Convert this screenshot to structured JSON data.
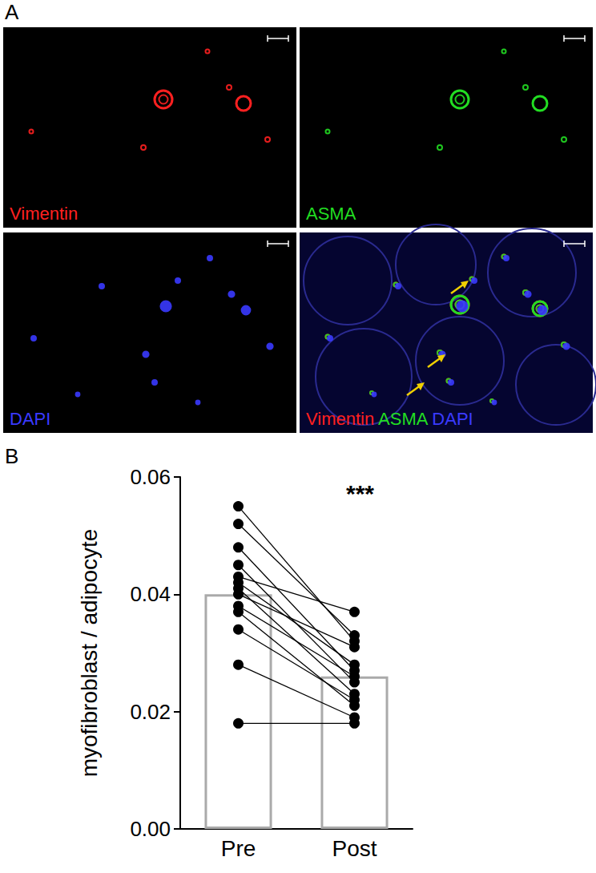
{
  "figure": {
    "panel_a": {
      "label": "A",
      "images": [
        {
          "labels": [
            {
              "text": "Vimentin",
              "color": "#ff2020"
            }
          ]
        },
        {
          "labels": [
            {
              "text": "ASMA",
              "color": "#22dd22"
            }
          ]
        },
        {
          "labels": [
            {
              "text": "DAPI",
              "color": "#3a3aff"
            }
          ]
        },
        {
          "labels": [
            {
              "text": "Vimentin",
              "color": "#ff2020"
            },
            {
              "text": "ASMA",
              "color": "#22dd22"
            },
            {
              "text": "DAPI",
              "color": "#3a3aff"
            }
          ]
        }
      ]
    },
    "panel_b_label": "B"
  },
  "chart_data": {
    "type": "bar",
    "ylabel": "myofibroblast / adipocyte",
    "categories": [
      "Pre",
      "Post"
    ],
    "values": [
      0.04,
      0.026
    ],
    "color": "#aaaaaa",
    "paired_values": [
      [
        0.055,
        0.032
      ],
      [
        0.052,
        0.033
      ],
      [
        0.048,
        0.027
      ],
      [
        0.045,
        0.025
      ],
      [
        0.043,
        0.037
      ],
      [
        0.042,
        0.028
      ],
      [
        0.041,
        0.023
      ],
      [
        0.04,
        0.031
      ],
      [
        0.038,
        0.026
      ],
      [
        0.037,
        0.021
      ],
      [
        0.034,
        0.022
      ],
      [
        0.028,
        0.019
      ],
      [
        0.018,
        0.018
      ]
    ],
    "marker": "circle",
    "annotation": "***",
    "ylim": [
      0,
      0.06
    ],
    "yticks": [
      {
        "value": 0,
        "label": "0.00"
      },
      {
        "value": 0.02,
        "label": "0.02"
      },
      {
        "value": 0.04,
        "label": "0.04"
      },
      {
        "value": 0.06,
        "label": "0.06"
      }
    ],
    "grid": false
  }
}
